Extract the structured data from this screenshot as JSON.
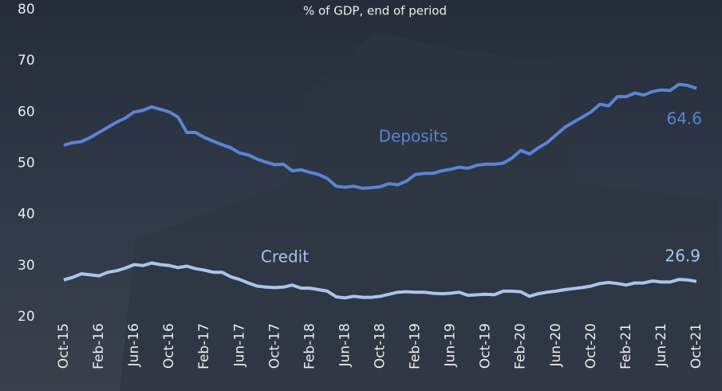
{
  "chart_data": {
    "type": "line",
    "subtitle": "% of GDP, end of period",
    "categories": [
      "Oct-15",
      null,
      null,
      null,
      "Feb-16",
      null,
      null,
      null,
      "Jun-16",
      null,
      null,
      null,
      "Oct-16",
      null,
      null,
      null,
      "Feb-17",
      null,
      null,
      null,
      "Jun-17",
      null,
      null,
      null,
      "Oct-17",
      null,
      null,
      null,
      "Feb-18",
      null,
      null,
      null,
      "Jun-18",
      null,
      null,
      null,
      "Oct-18",
      null,
      null,
      null,
      "Feb-19",
      null,
      null,
      null,
      "Jun-19",
      null,
      null,
      null,
      "Oct-19",
      null,
      null,
      null,
      "Feb-20",
      null,
      null,
      null,
      "Jun-20",
      null,
      null,
      null,
      "Oct-20",
      null,
      null,
      null,
      "Feb-21",
      null,
      null,
      null,
      "Jun-21",
      null,
      null,
      null,
      "Oct-21"
    ],
    "series": [
      {
        "name": "Deposits",
        "color": "#5b84d4",
        "values": [
          53.5,
          54,
          54.2,
          55,
          56,
          57,
          58,
          58.8,
          60,
          60.3,
          61,
          60.5,
          60,
          59,
          56,
          56,
          55,
          54.3,
          53.6,
          53,
          52,
          51.6,
          50.8,
          50.2,
          49.7,
          49.8,
          48.5,
          48.7,
          48.2,
          47.8,
          47,
          45.5,
          45.3,
          45.5,
          45.1,
          45.2,
          45.4,
          46,
          45.8,
          46.5,
          47.8,
          48,
          48,
          48.5,
          48.8,
          49.2,
          49,
          49.6,
          49.8,
          49.8,
          50,
          51,
          52.5,
          51.8,
          53,
          54,
          55.5,
          57,
          58,
          59,
          60,
          61.5,
          61.2,
          63,
          63,
          63.7,
          63.3,
          64,
          64.3,
          64.2,
          65.4,
          65.2,
          64.6
        ]
      },
      {
        "name": "Credit",
        "color": "#a9c4ee",
        "values": [
          27.2,
          27.7,
          28.4,
          28.2,
          28,
          28.7,
          29,
          29.5,
          30.2,
          30,
          30.5,
          30.2,
          30,
          29.6,
          29.9,
          29.4,
          29.1,
          28.7,
          28.7,
          27.8,
          27.3,
          26.6,
          26,
          25.8,
          25.7,
          25.8,
          26.2,
          25.6,
          25.6,
          25.3,
          25,
          23.9,
          23.7,
          24,
          23.8,
          23.8,
          24,
          24.4,
          24.8,
          24.9,
          24.8,
          24.8,
          24.6,
          24.5,
          24.6,
          24.8,
          24.2,
          24.3,
          24.4,
          24.3,
          25,
          25,
          24.9,
          24,
          24.5,
          24.8,
          25,
          25.3,
          25.5,
          25.7,
          26,
          26.5,
          26.7,
          26.5,
          26.2,
          26.6,
          26.6,
          27,
          26.8,
          26.8,
          27.3,
          27.2,
          26.9
        ]
      }
    ],
    "ylim": [
      20,
      80
    ],
    "yticks": [
      20,
      30,
      40,
      50,
      60,
      70,
      80
    ],
    "grid": false
  }
}
